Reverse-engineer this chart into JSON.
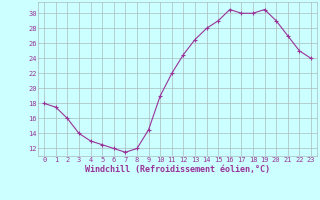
{
  "x": [
    0,
    1,
    2,
    3,
    4,
    5,
    6,
    7,
    8,
    9,
    10,
    11,
    12,
    13,
    14,
    15,
    16,
    17,
    18,
    19,
    20,
    21,
    22,
    23
  ],
  "y": [
    18,
    17.5,
    16,
    14,
    13,
    12.5,
    12,
    11.5,
    12,
    14.5,
    19,
    22,
    24.5,
    26.5,
    28,
    29,
    30.5,
    30,
    30,
    30.5,
    29,
    27,
    25,
    24
  ],
  "line_color": "#993399",
  "marker": "+",
  "bg_color": "#ccffff",
  "grid_color": "#aabbbb",
  "xlabel": "Windchill (Refroidissement éolien,°C)",
  "xlabel_color": "#993399",
  "yticks": [
    12,
    14,
    16,
    18,
    20,
    22,
    24,
    26,
    28,
    30
  ],
  "xticks": [
    0,
    1,
    2,
    3,
    4,
    5,
    6,
    7,
    8,
    9,
    10,
    11,
    12,
    13,
    14,
    15,
    16,
    17,
    18,
    19,
    20,
    21,
    22,
    23
  ],
  "ylim": [
    11,
    31.5
  ],
  "xlim": [
    -0.5,
    23.5
  ],
  "tick_fontsize": 5.0,
  "xlabel_fontsize": 6.0,
  "markersize": 3,
  "linewidth": 0.8
}
